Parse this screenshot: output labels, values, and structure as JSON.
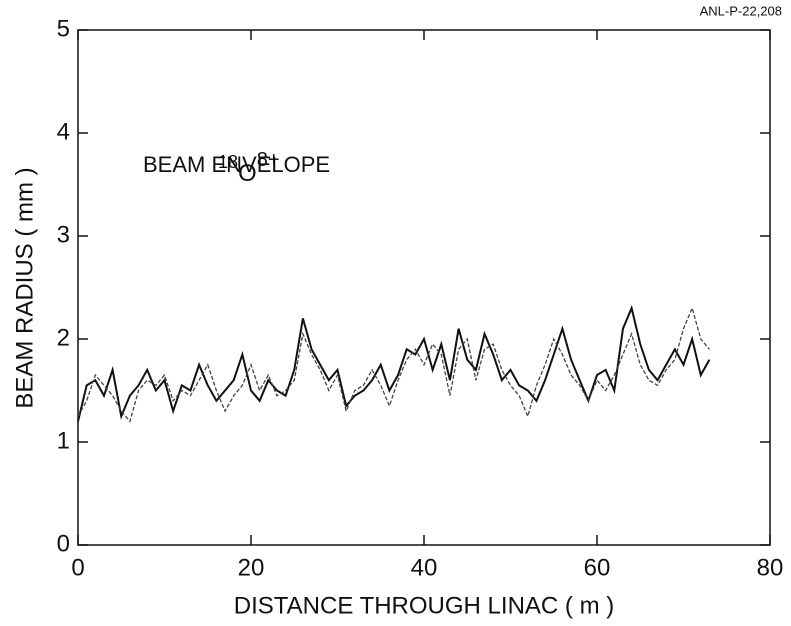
{
  "chart_data": {
    "type": "line",
    "label": "ANL-P-22,208",
    "annotation_ion": {
      "mass": "18",
      "element": "O",
      "charge": "8+"
    },
    "annotation": "BEAM ENVELOPE",
    "x_label": "DISTANCE THROUGH LINAC ( m )",
    "y_label": "BEAM RADIUS ( mm )",
    "xlim": [
      0,
      80
    ],
    "xticks": [
      0,
      20,
      40,
      60,
      80
    ],
    "ylim": [
      0,
      5
    ],
    "yticks": [
      0,
      1,
      2,
      3,
      4,
      5
    ],
    "x": [
      0,
      1,
      2,
      3,
      4,
      5,
      6,
      7,
      8,
      9,
      10,
      11,
      12,
      13,
      14,
      15,
      16,
      17,
      18,
      19,
      20,
      21,
      22,
      23,
      24,
      25,
      26,
      27,
      28,
      29,
      30,
      31,
      32,
      33,
      34,
      35,
      36,
      37,
      38,
      39,
      40,
      41,
      42,
      43,
      44,
      45,
      46,
      47,
      48,
      49,
      50,
      51,
      52,
      53,
      54,
      55,
      56,
      57,
      58,
      59,
      60,
      61,
      62,
      63,
      64,
      65,
      66,
      67,
      68,
      69,
      70,
      71,
      72,
      73
    ],
    "series": [
      {
        "color": "#111111",
        "dash": "solid",
        "values": [
          1.2,
          1.55,
          1.6,
          1.45,
          1.7,
          1.25,
          1.45,
          1.55,
          1.7,
          1.5,
          1.6,
          1.3,
          1.55,
          1.5,
          1.75,
          1.55,
          1.4,
          1.5,
          1.6,
          1.85,
          1.5,
          1.4,
          1.6,
          1.5,
          1.45,
          1.7,
          2.2,
          1.9,
          1.75,
          1.6,
          1.7,
          1.35,
          1.45,
          1.5,
          1.6,
          1.75,
          1.5,
          1.65,
          1.9,
          1.85,
          2.0,
          1.7,
          1.95,
          1.6,
          2.1,
          1.8,
          1.7,
          2.05,
          1.85,
          1.6,
          1.7,
          1.55,
          1.5,
          1.4,
          1.6,
          1.85,
          2.1,
          1.8,
          1.6,
          1.4,
          1.65,
          1.7,
          1.5,
          2.1,
          2.3,
          1.95,
          1.7,
          1.6,
          1.75,
          1.9,
          1.75,
          2.0,
          1.65,
          1.8
        ]
      },
      {
        "color": "#444444",
        "dash": "dashed",
        "values": [
          1.25,
          1.4,
          1.65,
          1.55,
          1.45,
          1.3,
          1.2,
          1.5,
          1.6,
          1.55,
          1.65,
          1.4,
          1.5,
          1.45,
          1.6,
          1.75,
          1.5,
          1.3,
          1.45,
          1.55,
          1.75,
          1.5,
          1.65,
          1.45,
          1.5,
          1.6,
          2.05,
          1.85,
          1.7,
          1.5,
          1.65,
          1.3,
          1.5,
          1.55,
          1.7,
          1.55,
          1.35,
          1.6,
          1.8,
          1.9,
          1.75,
          1.95,
          1.85,
          1.45,
          1.9,
          2.0,
          1.6,
          1.9,
          1.95,
          1.7,
          1.55,
          1.45,
          1.25,
          1.55,
          1.75,
          2.0,
          1.85,
          1.65,
          1.55,
          1.4,
          1.6,
          1.5,
          1.65,
          1.85,
          2.05,
          1.75,
          1.6,
          1.55,
          1.7,
          1.8,
          2.1,
          2.3,
          2.0,
          1.9
        ]
      }
    ]
  }
}
